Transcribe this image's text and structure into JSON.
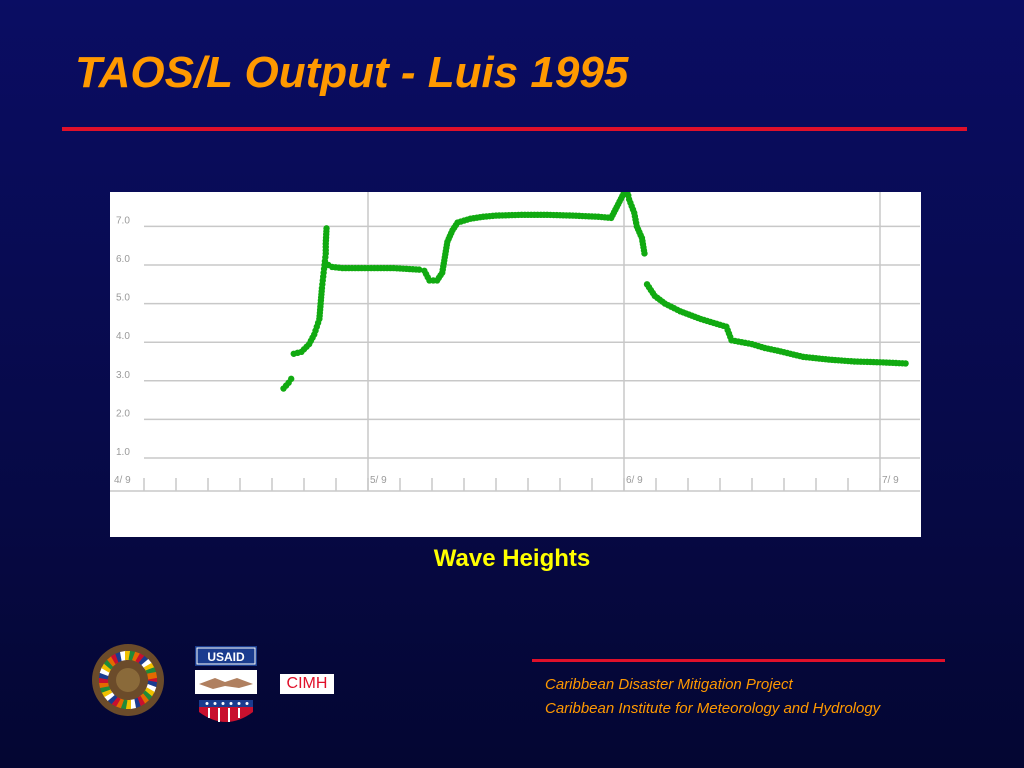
{
  "slide": {
    "title": "TAOS/L Output - Luis 1995",
    "caption": "Wave Heights",
    "footer_line1": "Caribbean Disaster Mitigation Project",
    "footer_line2": "Caribbean Institute for Meteorology and Hydrology",
    "logo_usaid_text": "USAID",
    "logo_cimh_text": "CIMH",
    "colors": {
      "title": "#ff9900",
      "rule": "#e0102a",
      "caption": "#ffff00",
      "series": "#11aa11",
      "background": "#0a0d63"
    }
  },
  "chart_data": {
    "type": "scatter",
    "title": "",
    "xlabel": "",
    "ylabel": "",
    "ylim": [
      0.5,
      8.0
    ],
    "y_ticks": [
      "1.0",
      "2.0",
      "3.0",
      "4.0",
      "5.0",
      "6.0",
      "7.0"
    ],
    "x_tick_labels": [
      "4/ 9",
      "5/ 9",
      "6/ 9",
      "7/ 9"
    ],
    "xlim": [
      0,
      3.2
    ],
    "minor_ticks_per_day": 8,
    "grid": true,
    "series": [
      {
        "color": "#11aa11",
        "points": [
          [
            0.67,
            2.8
          ],
          [
            0.69,
            2.95
          ],
          [
            0.7,
            3.05
          ],
          [
            0.71,
            3.7
          ],
          [
            0.74,
            3.75
          ],
          [
            0.77,
            3.95
          ],
          [
            0.79,
            4.2
          ],
          [
            0.8,
            4.4
          ],
          [
            0.81,
            4.6
          ],
          [
            0.815,
            5.0
          ],
          [
            0.82,
            5.4
          ],
          [
            0.825,
            5.7
          ],
          [
            0.83,
            6.0
          ],
          [
            0.835,
            6.3
          ],
          [
            0.835,
            6.55
          ],
          [
            0.838,
            6.95
          ],
          [
            0.845,
            6.0
          ],
          [
            0.86,
            5.95
          ],
          [
            0.9,
            5.92
          ],
          [
            0.95,
            5.92
          ],
          [
            1.0,
            5.92
          ],
          [
            1.05,
            5.92
          ],
          [
            1.1,
            5.92
          ],
          [
            1.15,
            5.9
          ],
          [
            1.2,
            5.88
          ],
          [
            1.22,
            5.85
          ],
          [
            1.24,
            5.6
          ],
          [
            1.27,
            5.6
          ],
          [
            1.29,
            5.8
          ],
          [
            1.3,
            6.2
          ],
          [
            1.31,
            6.6
          ],
          [
            1.33,
            6.9
          ],
          [
            1.35,
            7.1
          ],
          [
            1.4,
            7.2
          ],
          [
            1.45,
            7.25
          ],
          [
            1.5,
            7.28
          ],
          [
            1.6,
            7.3
          ],
          [
            1.7,
            7.3
          ],
          [
            1.8,
            7.28
          ],
          [
            1.9,
            7.25
          ],
          [
            1.95,
            7.22
          ],
          [
            2.01,
            8.0
          ],
          [
            2.02,
            7.7
          ],
          [
            2.04,
            7.35
          ],
          [
            2.05,
            7.0
          ],
          [
            2.07,
            6.7
          ],
          [
            2.08,
            6.3
          ],
          [
            2.09,
            5.5
          ],
          [
            2.12,
            5.2
          ],
          [
            2.16,
            5.0
          ],
          [
            2.22,
            4.8
          ],
          [
            2.3,
            4.6
          ],
          [
            2.4,
            4.4
          ],
          [
            2.42,
            4.05
          ],
          [
            2.5,
            3.95
          ],
          [
            2.55,
            3.85
          ],
          [
            2.6,
            3.78
          ],
          [
            2.65,
            3.7
          ],
          [
            2.7,
            3.62
          ],
          [
            2.8,
            3.55
          ],
          [
            2.9,
            3.5
          ],
          [
            3.0,
            3.48
          ],
          [
            3.1,
            3.45
          ]
        ]
      }
    ]
  }
}
